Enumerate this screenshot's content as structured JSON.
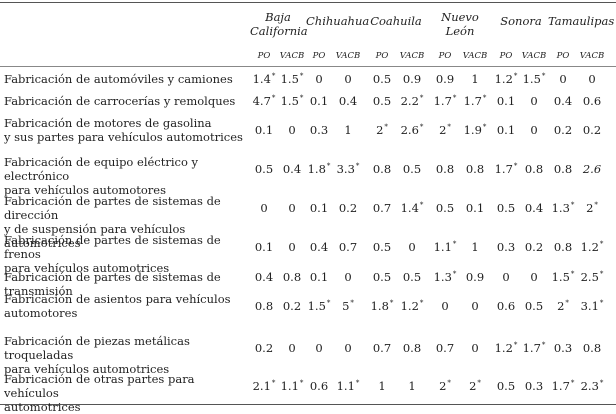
{
  "columns": [
    {
      "region": "Baja California",
      "region_lines": [
        "Baja",
        "California"
      ]
    },
    {
      "region": "Chihuahua",
      "region_lines": [
        "Chihuahua"
      ]
    },
    {
      "region": "Coahuila",
      "region_lines": [
        "Coahuila"
      ]
    },
    {
      "region": "Nuevo León",
      "region_lines": [
        "Nuevo",
        "León"
      ]
    },
    {
      "region": "Sonora",
      "region_lines": [
        "Sonora"
      ]
    },
    {
      "region": "Tamaulipas",
      "region_lines": [
        "Tamaulipas"
      ]
    }
  ],
  "subheaders": [
    "PO",
    "VACB"
  ],
  "rows": [
    {
      "label_lines": [
        "Fabricación de automóviles y camiones"
      ],
      "values": [
        "1.4*",
        "1.5*",
        "0",
        "0",
        "0.5",
        "0.9",
        "0.9",
        "1",
        "1.2*",
        "1.5*",
        "0",
        "0"
      ]
    },
    {
      "label_lines": [
        "Fabricación de carrocerías y remolques"
      ],
      "values": [
        "4.7*",
        "1.5*",
        "0.1",
        "0.4",
        "0.5",
        "2.2*",
        "1.7*",
        "1.7*",
        "0.1",
        "0",
        "0.4",
        "0.6"
      ]
    },
    {
      "label_lines": [
        "Fabricación de motores de gasolina",
        "y sus partes para vehículos automotrices"
      ],
      "values": [
        "0.1",
        "0",
        "0.3",
        "1",
        "2*",
        "2.6*",
        "2*",
        "1.9*",
        "0.1",
        "0",
        "0.2",
        "0.2"
      ]
    },
    {
      "label_lines": [
        "Fabricación de equipo eléctrico y electrónico",
        "para vehículos automotores"
      ],
      "values": [
        "0.5",
        "0.4",
        "1.8*",
        "3.3*",
        "0.8",
        "0.5",
        "0.8",
        "0.8",
        "1.7*",
        "0.8",
        "0.8",
        "2.6"
      ]
    },
    {
      "label_lines": [
        "Fabricación de partes de sistemas de dirección",
        "y de suspensión para vehículos automotrices"
      ],
      "values": [
        "0",
        "0",
        "0.1",
        "0.2",
        "0.7",
        "1.4*",
        "0.5",
        "0.1",
        "0.5",
        "0.4",
        "1.3*",
        "2*"
      ]
    },
    {
      "label_lines": [
        "Fabricación de partes de sistemas de frenos",
        "para vehículos automotrices"
      ],
      "values": [
        "0.1",
        "0",
        "0.4",
        "0.7",
        "0.5",
        "0",
        "1.1*",
        "1",
        "0.3",
        "0.2",
        "0.8",
        "1.2*"
      ]
    },
    {
      "label_lines": [
        "Fabricación de partes de sistemas de transmisión"
      ],
      "values": [
        "0.4",
        "0.8",
        "0.1",
        "0",
        "0.5",
        "0.5",
        "1.3*",
        "0.9",
        "0",
        "0",
        "1.5*",
        "2.5*"
      ]
    },
    {
      "label_lines": [
        "Fabricación de asientos para vehículos",
        "automotores"
      ],
      "values": [
        "0.8",
        "0.2",
        "1.5*",
        "5*",
        "1.8*",
        "1.2*",
        "0",
        "0",
        "0.6",
        "0.5",
        "2*",
        "3.1*"
      ]
    },
    {
      "label_lines": [
        "Fabricación de piezas metálicas troqueladas",
        "para vehículos automotrices"
      ],
      "values": [
        "0.2",
        "0",
        "0",
        "0",
        "0.7",
        "0.8",
        "0.7",
        "0",
        "1.2*",
        "1.7*",
        "0.3",
        "0.8"
      ]
    },
    {
      "label_lines": [
        "Fabricación de otras partes para vehículos",
        "automotrices"
      ],
      "values": [
        "2.1*",
        "1.1*",
        "0.6",
        "1.1*",
        "1",
        "1",
        "2*",
        "2*",
        "0.5",
        "0.3",
        "1.7*",
        "2.3*"
      ]
    }
  ]
}
